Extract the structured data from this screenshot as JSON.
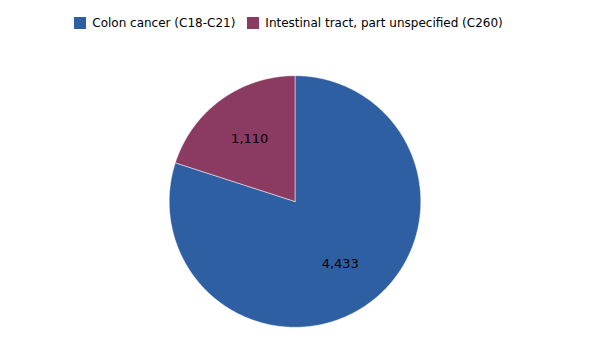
{
  "chart_data": {
    "type": "pie",
    "categories": [
      "Colon cancer (C18-C21)",
      "Intestinal tract, part unspecified (C260)"
    ],
    "values": [
      4433,
      1110
    ],
    "value_labels": [
      "4,433",
      "1,110"
    ],
    "colors": [
      "#2E5FA3",
      "#8B3A62"
    ],
    "data_labels": true,
    "legend": "top"
  }
}
